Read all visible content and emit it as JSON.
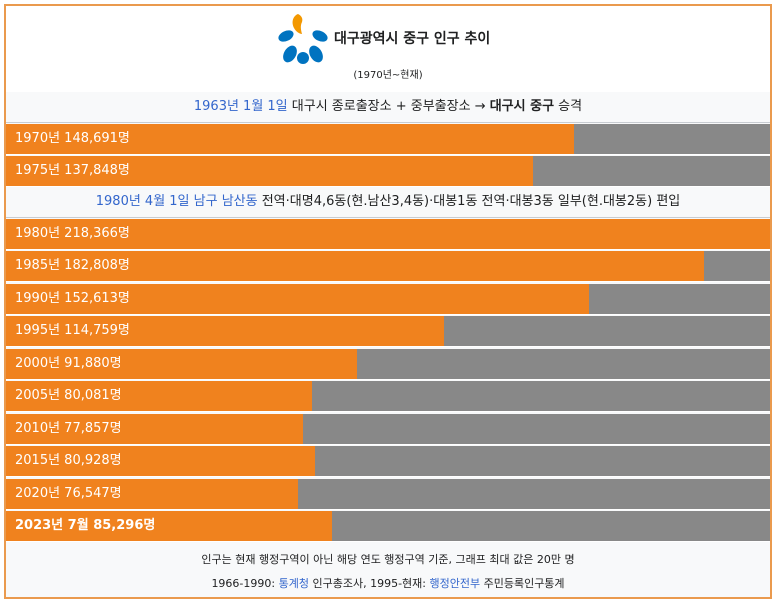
{
  "header": {
    "title": "대구광역시 중구 인구 추이",
    "subtitle": "(1970년~현재)"
  },
  "notes": [
    {
      "link": "1963년 1월 1일",
      "text": " 대구시 종로출장소 + 중부출장소 → ",
      "bold": "대구시 중구",
      "tail": " 승격"
    },
    {
      "link": "1980년 4월 1일 남구 남산동",
      "text": " 전역·대명4,6동(현.남산3,4동)·대봉1동 전역·대봉3동 일부(현.대봉2동) 편입"
    }
  ],
  "chart_data": {
    "type": "bar",
    "orientation": "horizontal",
    "max": 200000,
    "categories": [
      "1970년",
      "1975년",
      "1980년",
      "1985년",
      "1990년",
      "1995년",
      "2000년",
      "2005년",
      "2010년",
      "2015년",
      "2020년",
      "2023년 7월"
    ],
    "values": [
      148691,
      137848,
      218366,
      182808,
      152613,
      114759,
      91880,
      80081,
      77857,
      80928,
      76547,
      85296
    ],
    "labels": [
      "1970년 148,691명",
      "1975년 137,848명",
      "1980년 218,366명",
      "1985년 182,808명",
      "1990년 152,613명",
      "1995년 114,759명",
      "2000년 91,880명",
      "2005년 80,081명",
      "2010년 77,857명",
      "2015년 80,928명",
      "2020년 76,547명",
      "2023년 7월 85,296명"
    ],
    "bold_last": true,
    "colors": {
      "fill": "#f0821e",
      "track": "#888888"
    }
  },
  "footer": {
    "line1": "인구는 현재 행정구역이 아닌 해당 연도 행정구역 기준, 그래프 최대 값은 20만 명",
    "line2_a": "1966-1990: ",
    "line2_link1": "통계청",
    "line2_b": " 인구총조사, 1995-현재: ",
    "line2_link2": "행정안전부",
    "line2_c": " 주민등록인구통계"
  },
  "colors": {
    "frame": "#ea9a4e",
    "link": "#3366cc",
    "logo_blue": "#0073c0",
    "logo_orange": "#f39800"
  },
  "icons": {
    "logo": "daegu-jung-gu-emblem"
  }
}
